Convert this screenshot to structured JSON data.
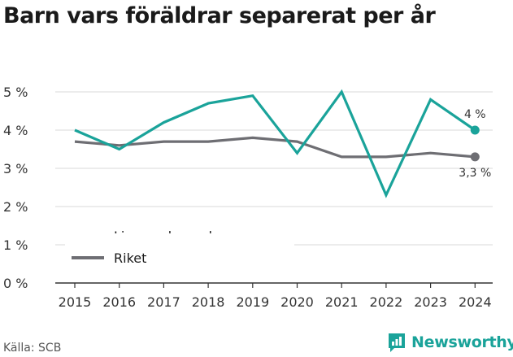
{
  "chart_data": {
    "type": "line",
    "title": "Barn vars föräldrar separerat per år",
    "x": [
      "2015",
      "2016",
      "2017",
      "2018",
      "2019",
      "2020",
      "2021",
      "2022",
      "2023",
      "2024"
    ],
    "series": [
      {
        "name": "Ljusnarsbergs kommun",
        "color": "#1aa39a",
        "values": [
          4.0,
          3.5,
          4.2,
          4.7,
          4.9,
          3.4,
          5.0,
          2.3,
          4.8,
          4.0
        ],
        "end_label": "4 %"
      },
      {
        "name": "Riket",
        "color": "#6e6e73",
        "values": [
          3.7,
          3.6,
          3.7,
          3.7,
          3.8,
          3.7,
          3.3,
          3.3,
          3.4,
          3.3
        ],
        "end_label": "3,3 %"
      }
    ],
    "yticks": [
      {
        "value": 0,
        "label": "0 %"
      },
      {
        "value": 1,
        "label": "1 %"
      },
      {
        "value": 2,
        "label": "2 %"
      },
      {
        "value": 3,
        "label": "3 %"
      },
      {
        "value": 4,
        "label": "4 %"
      },
      {
        "value": 5,
        "label": "5 %"
      }
    ],
    "ylim": [
      0,
      5
    ],
    "grid": true,
    "legend_position": "bottom-left"
  },
  "footer": {
    "source": "Källa: SCB",
    "brand": "Newsworthy"
  },
  "colors": {
    "grid": "#d9d9d9",
    "axis": "#333333",
    "brand": "#1aa39a"
  }
}
